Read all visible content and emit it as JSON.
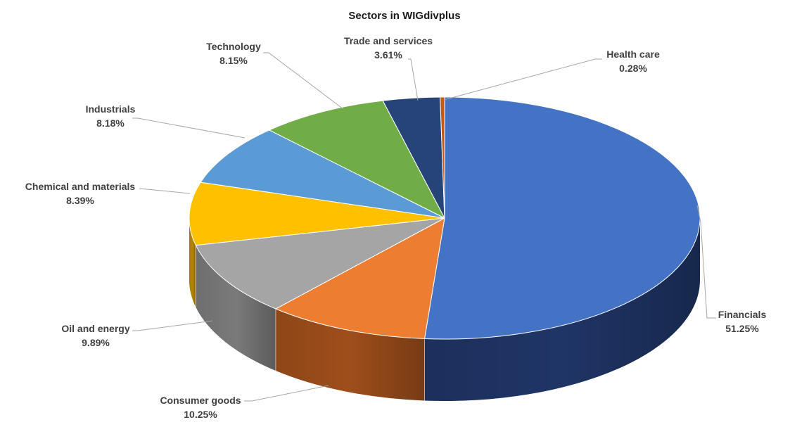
{
  "chart_data": {
    "type": "pie",
    "title": "Sectors in WIGdivplus",
    "start_angle_deg": 90,
    "direction": "clockwise",
    "slices": [
      {
        "label": "Financials",
        "value": 51.25,
        "display": "51.25%",
        "color": "#4472C4",
        "side_color": "#1F3566",
        "label_pos": "right"
      },
      {
        "label": "Consumer goods",
        "value": 10.25,
        "display": "10.25%",
        "color": "#ED7D31",
        "side_color": "#9E4E1B",
        "label_pos": "bottom-left"
      },
      {
        "label": "Oil and energy",
        "value": 9.89,
        "display": "9.89%",
        "color": "#A5A5A5",
        "side_color": "#7A7A7A",
        "label_pos": "left"
      },
      {
        "label": "Chemical and materials",
        "value": 8.39,
        "display": "8.39%",
        "color": "#FFC000",
        "side_color": "#B38600",
        "label_pos": "left"
      },
      {
        "label": "Industrials",
        "value": 8.18,
        "display": "8.18%",
        "color": "#5B9BD5",
        "side_color": "#3A6E9E",
        "label_pos": "top-left"
      },
      {
        "label": "Technology",
        "value": 8.15,
        "display": "8.15%",
        "color": "#70AD47",
        "side_color": "#4E7A31",
        "label_pos": "top-left"
      },
      {
        "label": "Trade and services",
        "value": 3.61,
        "display": "3.61%",
        "color": "#264478",
        "side_color": "#172A4A",
        "label_pos": "top"
      },
      {
        "label": "Health care",
        "value": 0.28,
        "display": "0.28%",
        "color": "#C55A11",
        "side_color": "#7F3A0B",
        "label_pos": "top-right"
      }
    ]
  }
}
